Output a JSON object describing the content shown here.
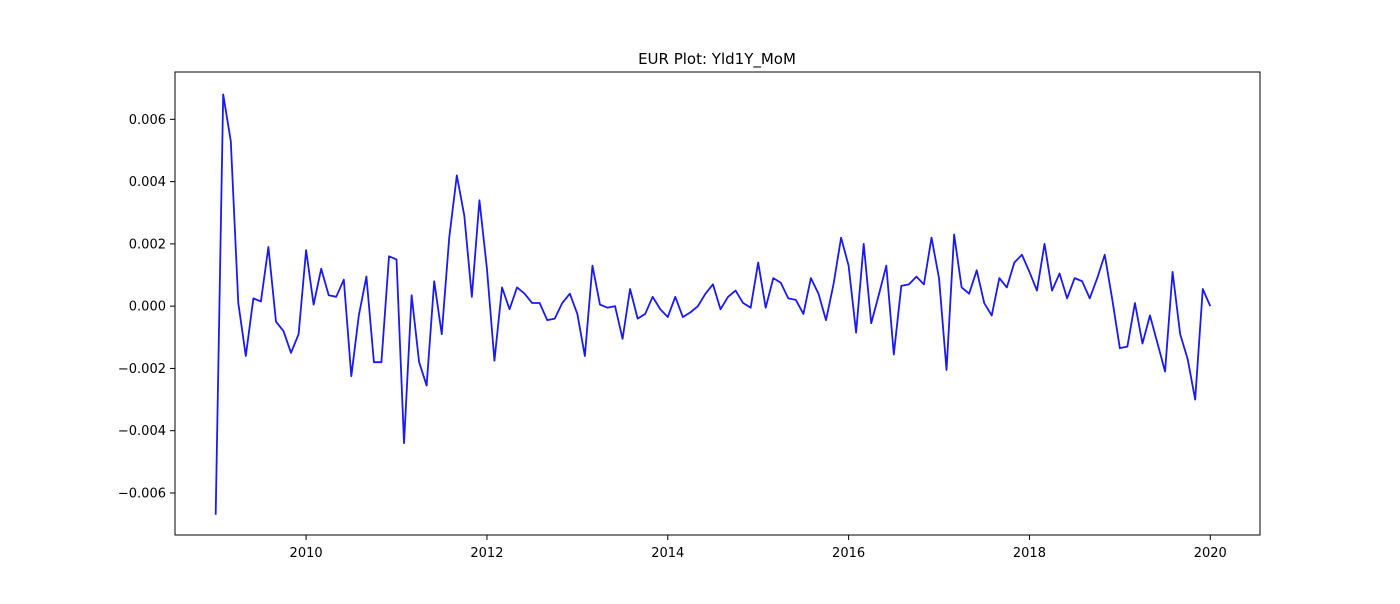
{
  "chart_data": {
    "type": "line",
    "title": "EUR Plot: Yld1Y_MoM",
    "xlabel": "",
    "ylabel": "",
    "xlim": [
      2008.55,
      2020.55
    ],
    "ylim": [
      -0.00735,
      0.00752
    ],
    "grid": false,
    "line_color": "#1a1aee",
    "x_ticks": [
      2010,
      2012,
      2014,
      2016,
      2018,
      2020
    ],
    "x_tick_labels": [
      "2010",
      "2012",
      "2014",
      "2016",
      "2018",
      "2020"
    ],
    "y_ticks": [
      -0.006,
      -0.004,
      -0.002,
      0.0,
      0.002,
      0.004,
      0.006
    ],
    "y_tick_labels": [
      "−0.006",
      "−0.004",
      "−0.002",
      "0.000",
      "0.002",
      "0.004",
      "0.006"
    ],
    "series": [
      {
        "x": [
          2009.0,
          2009.083,
          2009.167,
          2009.25,
          2009.333,
          2009.417,
          2009.5,
          2009.583,
          2009.667,
          2009.75,
          2009.833,
          2009.917,
          2010.0,
          2010.083,
          2010.167,
          2010.25,
          2010.333,
          2010.417,
          2010.5,
          2010.583,
          2010.667,
          2010.75,
          2010.833,
          2010.917,
          2011.0,
          2011.083,
          2011.167,
          2011.25,
          2011.333,
          2011.417,
          2011.5,
          2011.583,
          2011.667,
          2011.75,
          2011.833,
          2011.917,
          2012.0,
          2012.083,
          2012.167,
          2012.25,
          2012.333,
          2012.417,
          2012.5,
          2012.583,
          2012.667,
          2012.75,
          2012.833,
          2012.917,
          2013.0,
          2013.083,
          2013.167,
          2013.25,
          2013.333,
          2013.417,
          2013.5,
          2013.583,
          2013.667,
          2013.75,
          2013.833,
          2013.917,
          2014.0,
          2014.083,
          2014.167,
          2014.25,
          2014.333,
          2014.417,
          2014.5,
          2014.583,
          2014.667,
          2014.75,
          2014.833,
          2014.917,
          2015.0,
          2015.083,
          2015.167,
          2015.25,
          2015.333,
          2015.417,
          2015.5,
          2015.583,
          2015.667,
          2015.75,
          2015.833,
          2015.917,
          2016.0,
          2016.083,
          2016.167,
          2016.25,
          2016.333,
          2016.417,
          2016.5,
          2016.583,
          2016.667,
          2016.75,
          2016.833,
          2016.917,
          2017.0,
          2017.083,
          2017.167,
          2017.25,
          2017.333,
          2017.417,
          2017.5,
          2017.583,
          2017.667,
          2017.75,
          2017.833,
          2017.917,
          2018.0,
          2018.083,
          2018.167,
          2018.25,
          2018.333,
          2018.417,
          2018.5,
          2018.583,
          2018.667,
          2018.75,
          2018.833,
          2018.917,
          2019.0,
          2019.083,
          2019.167,
          2019.25,
          2019.333,
          2019.417,
          2019.5,
          2019.583,
          2019.667,
          2019.75,
          2019.833,
          2019.917,
          2020.0
        ],
        "y": [
          -0.0067,
          0.0068,
          0.0053,
          0.0001,
          -0.0016,
          0.00025,
          0.00015,
          0.0019,
          -0.0005,
          -0.0008,
          -0.0015,
          -0.0009,
          0.0018,
          5e-05,
          0.0012,
          0.00035,
          0.0003,
          0.00085,
          -0.00225,
          -0.0003,
          0.00095,
          -0.0018,
          -0.0018,
          0.0016,
          0.0015,
          -0.0044,
          0.00035,
          -0.0018,
          -0.00255,
          0.0008,
          -0.0009,
          0.0022,
          0.0042,
          0.0029,
          0.0003,
          0.0034,
          0.0012,
          -0.00175,
          0.0006,
          -0.0001,
          0.0006,
          0.0004,
          0.0001,
          0.0001,
          -0.00045,
          -0.0004,
          0.0001,
          0.0004,
          -0.00025,
          -0.0016,
          0.0013,
          5e-05,
          -5e-05,
          0.0,
          -0.00105,
          0.00055,
          -0.0004,
          -0.00025,
          0.0003,
          -0.0001,
          -0.00035,
          0.0003,
          -0.00035,
          -0.0002,
          0.0,
          0.0004,
          0.0007,
          -0.0001,
          0.0003,
          0.0005,
          0.0001,
          -5e-05,
          0.0014,
          -5e-05,
          0.0009,
          0.00075,
          0.00025,
          0.0002,
          -0.00025,
          0.0009,
          0.0004,
          -0.00045,
          0.0007,
          0.0022,
          0.0013,
          -0.00085,
          0.002,
          -0.00055,
          0.00035,
          0.0013,
          -0.00155,
          0.00065,
          0.0007,
          0.00095,
          0.0007,
          0.0022,
          0.0009,
          -0.00205,
          0.0023,
          0.0006,
          0.0004,
          0.00115,
          0.0001,
          -0.0003,
          0.0009,
          0.0006,
          0.0014,
          0.00165,
          0.0011,
          0.0005,
          0.002,
          0.0005,
          0.00105,
          0.00025,
          0.0009,
          0.0008,
          0.00025,
          0.0009,
          0.00165,
          0.0002,
          -0.00135,
          -0.0013,
          0.0001,
          -0.0012,
          -0.0003,
          -0.0012,
          -0.0021,
          0.0011,
          -0.0009,
          -0.0017,
          -0.003,
          0.00055,
          0.0
        ]
      }
    ]
  }
}
